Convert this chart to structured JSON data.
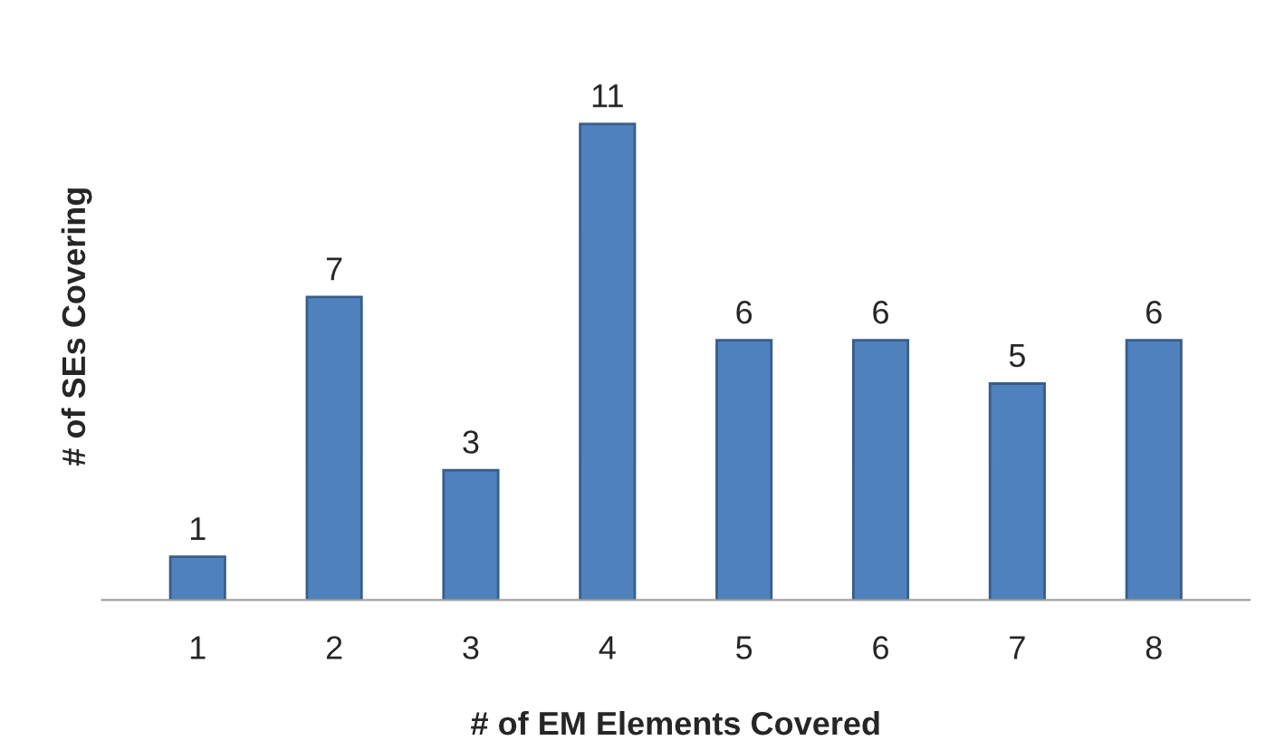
{
  "chart_data": {
    "type": "bar",
    "xlabel": "# of EM Elements Covered",
    "ylabel": "# of SEs Covering",
    "categories": [
      "1",
      "2",
      "3",
      "4",
      "5",
      "6",
      "7",
      "8"
    ],
    "values": [
      1,
      7,
      3,
      11,
      6,
      6,
      5,
      6
    ],
    "color": "#4f81bd",
    "data_labels": true,
    "grid": false,
    "legend": false
  }
}
